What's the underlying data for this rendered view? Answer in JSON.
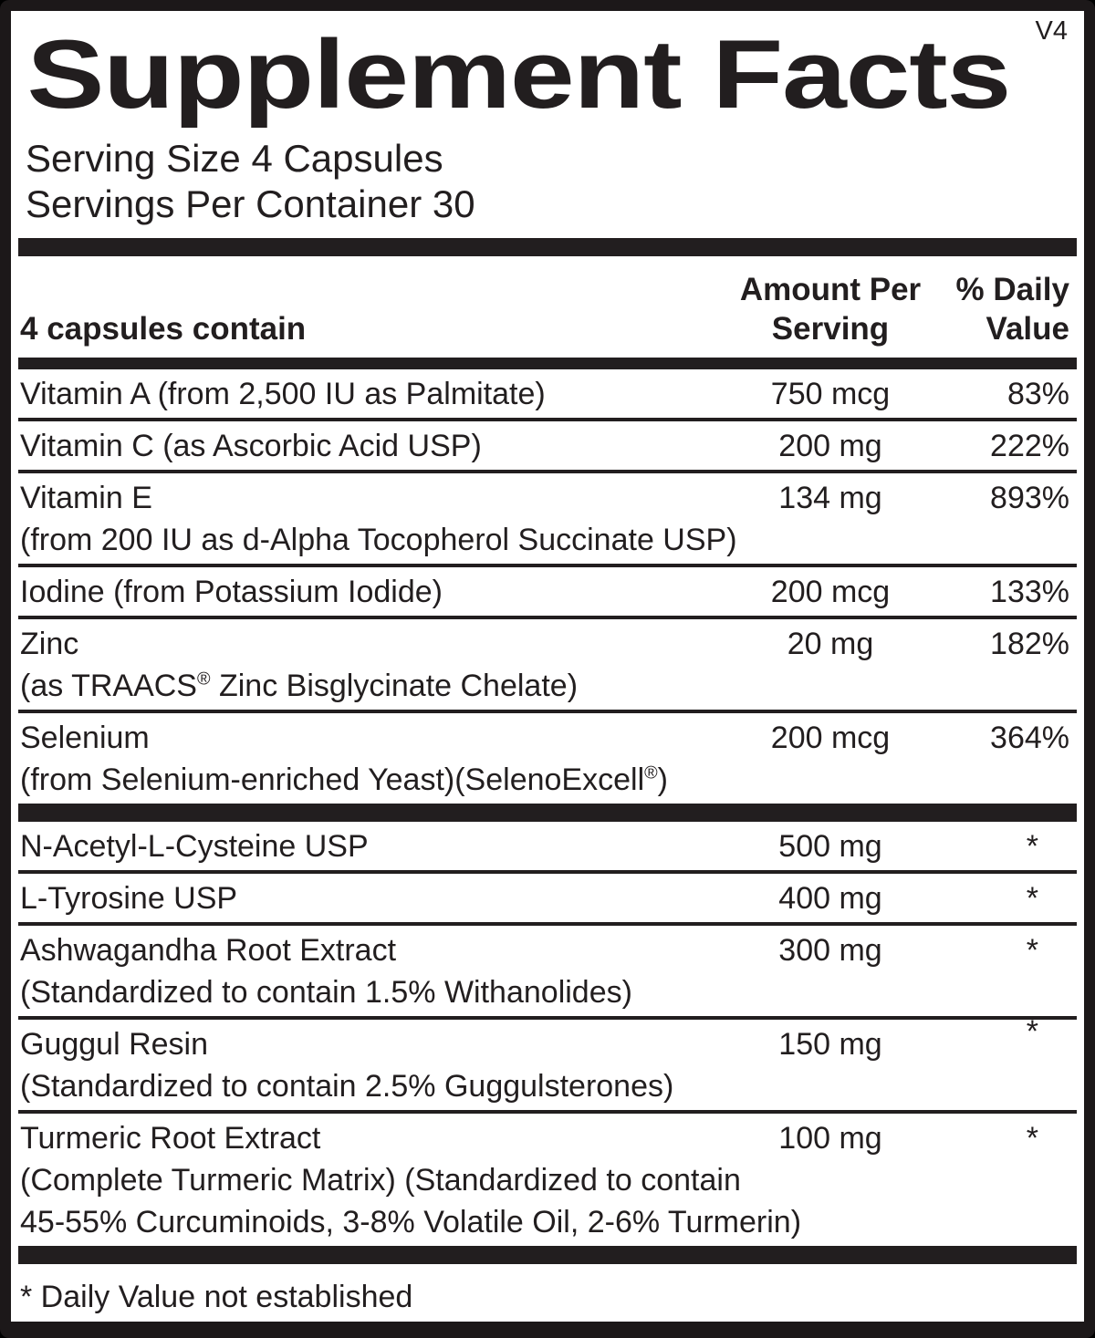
{
  "label": {
    "version": "V4",
    "title": "Supplement Facts",
    "serving_size": "Serving Size 4 Capsules",
    "servings_per_container": "Servings Per Container 30",
    "columns": {
      "contain": "4 capsules contain",
      "amount_line1": "Amount Per",
      "amount_line2": "Serving",
      "dv_line1": "% Daily",
      "dv_line2": "Value"
    },
    "sections": [
      {
        "rows": [
          {
            "name": "Vitamin A (from 2,500 IU as Palmitate)",
            "amount": "750 mcg",
            "dv": "83%"
          },
          {
            "name": "Vitamin C (as Ascorbic Acid USP)",
            "amount": "200 mg",
            "dv": "222%"
          },
          {
            "name": "Vitamin E",
            "sub1": "(from 200 IU as d-Alpha Tocopherol Succinate USP)",
            "amount": "134 mg",
            "dv": "893%"
          },
          {
            "name": "Iodine (from Potassium Iodide)",
            "amount": "200 mcg",
            "dv": "133%"
          },
          {
            "name": "Zinc",
            "sub1": "(as TRAACS® Zinc Bisglycinate Chelate)",
            "amount": "20 mg",
            "dv": "182%"
          },
          {
            "name": "Selenium",
            "sub1": "(from Selenium-enriched Yeast)(SelenoExcell®)",
            "amount": "200 mcg",
            "dv": "364%"
          }
        ]
      },
      {
        "rows": [
          {
            "name": "N-Acetyl-L-Cysteine USP",
            "amount": "500 mg",
            "dv": "*"
          },
          {
            "name": "L-Tyrosine USP",
            "amount": "400 mg",
            "dv": "*"
          },
          {
            "name": "Ashwagandha Root Extract",
            "sub1": "(Standardized to contain 1.5% Withanolides)",
            "amount": "300 mg",
            "dv": "*"
          },
          {
            "name": "Guggul Resin",
            "sub1": "(Standardized to contain 2.5% Guggulsterones)",
            "amount": "150 mg",
            "dv": "*"
          },
          {
            "name": "Turmeric Root Extract",
            "sub1": "(Complete Turmeric Matrix) (Standardized to contain",
            "sub2": "45-55% Curcuminoids, 3-8% Volatile Oil, 2-6% Turmerin)",
            "amount": "100 mg",
            "dv": "*"
          }
        ]
      }
    ],
    "footnote": "* Daily Value not established",
    "colors": {
      "ink": "#221e1f",
      "background": "#ffffff",
      "border": "#1c1819"
    }
  }
}
